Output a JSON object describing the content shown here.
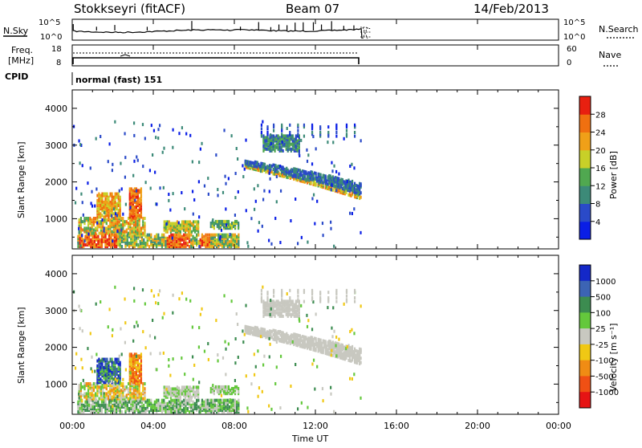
{
  "header": {
    "station": "Stokkseyri (fitACF)",
    "beam": "Beam 07",
    "date": "14/Feb/2013"
  },
  "nsky_panel": {
    "left_label": "N.Sky",
    "right_label": "N.Search",
    "ticks_left": [
      "10^5",
      "10^0"
    ],
    "ticks_right": [
      "10^5",
      "10^0"
    ]
  },
  "freq_panel": {
    "left_label_1": "Freq.",
    "left_label_2": "[MHz]",
    "right_label": "Nave",
    "ticks_left": [
      "18",
      "8"
    ],
    "ticks_right": [
      "60",
      "0"
    ]
  },
  "cpid": {
    "label": "CPID",
    "mode": "normal (fast) 151"
  },
  "chart_data": [
    {
      "type": "heatmap",
      "quantity": "Power",
      "ylabel": "Slant Range [km]",
      "ylim": [
        180,
        4500
      ],
      "yticks": [
        "1000",
        "2000",
        "3000",
        "4000"
      ],
      "xlim": [
        "00:00",
        "24:00"
      ],
      "data_end_time": "14:20",
      "colorbar": {
        "label": "Power [dB]",
        "ticks": [
          "4",
          "8",
          "12",
          "16",
          "20",
          "24",
          "28"
        ],
        "colors": [
          "#0a1ee6",
          "#2a4ac8",
          "#3c8a78",
          "#50a850",
          "#c8d028",
          "#f0a018",
          "#f07010",
          "#e82010"
        ]
      },
      "regions": [
        {
          "t": [
            0.3,
            8.2
          ],
          "r": [
            200,
            500
          ],
          "level": "high"
        },
        {
          "t": [
            0.5,
            3.5
          ],
          "r": [
            500,
            1000
          ],
          "level": "medium"
        },
        {
          "t": [
            1.2,
            2.5
          ],
          "r": [
            1000,
            1600
          ],
          "level": "high"
        },
        {
          "t": [
            2.8,
            3.4
          ],
          "r": [
            1100,
            1800
          ],
          "level": "high"
        },
        {
          "t": [
            4.5,
            5.8
          ],
          "r": [
            300,
            900
          ],
          "level": "high"
        },
        {
          "t": [
            8.5,
            14.2
          ],
          "r": [
            1500,
            2500
          ],
          "level": "arc"
        },
        {
          "t": [
            9.5,
            11.0
          ],
          "r": [
            2800,
            3300
          ],
          "level": "low"
        }
      ]
    },
    {
      "type": "heatmap",
      "quantity": "Velocity",
      "ylabel": "Slant Range [km]",
      "ylim": [
        180,
        4500
      ],
      "yticks": [
        "1000",
        "2000",
        "3000",
        "4000"
      ],
      "xlim": [
        "00:00",
        "24:00"
      ],
      "xticks": [
        "00:00",
        "04:00",
        "08:00",
        "12:00",
        "16:00",
        "20:00",
        "00:00"
      ],
      "xlabel": "Time UT",
      "colorbar": {
        "label": "Velocity [m s⁻¹]",
        "ticks": [
          "1000",
          "500",
          "100",
          "25",
          "-25",
          "-100",
          "-500",
          "-1000"
        ],
        "colors": [
          "#1428c8",
          "#3c64b4",
          "#3c8c50",
          "#64c83c",
          "#c8c8c0",
          "#f0c814",
          "#f08c14",
          "#f05014",
          "#e61414"
        ]
      }
    }
  ]
}
